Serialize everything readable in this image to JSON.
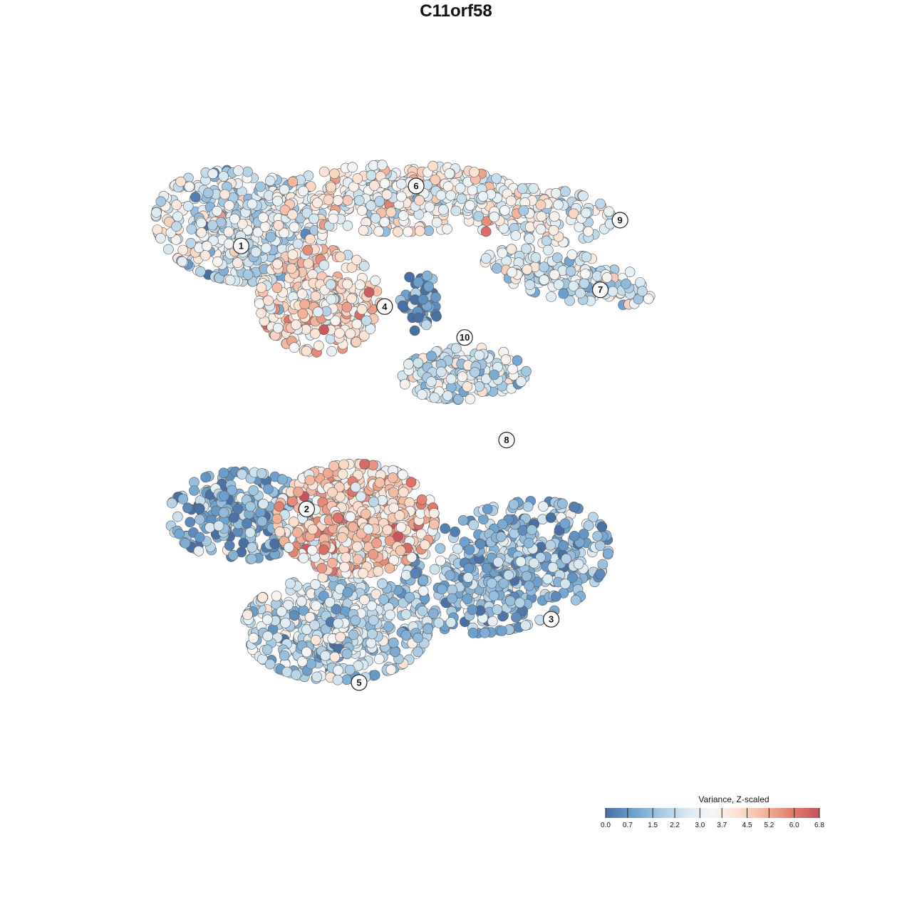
{
  "chart_data": {
    "type": "scatter",
    "title": "C11orf58",
    "xlabel": "",
    "ylabel": "",
    "xlim": [
      0,
      100
    ],
    "ylim": [
      0,
      100
    ],
    "grid": false,
    "axes_visible": false,
    "legend": {
      "title": "Variance, Z-scaled",
      "placement": "bottom-right",
      "range": [
        0.0,
        6.8
      ],
      "ticks": [
        "0.0",
        "0.7",
        "1.5",
        "2.2",
        "3.0",
        "3.7",
        "4.5",
        "5.2",
        "6.0",
        "6.8"
      ],
      "colors": [
        "#4a6fa3",
        "#6b9fcc",
        "#a3c6e0",
        "#d6e7f1",
        "#f7f7f7",
        "#fbe0d0",
        "#f2b199",
        "#e07b6c",
        "#c9505d"
      ]
    },
    "clusters": [
      {
        "label": "1",
        "x": 14.2,
        "y": 85.4,
        "sx": 12.8,
        "sy": 8.5,
        "rot": -0.15,
        "mean": 2.6,
        "n": 520
      },
      {
        "label": "6",
        "x": 38.5,
        "y": 89.7,
        "sx": 18.5,
        "sy": 5.2,
        "rot": 0.0,
        "mean": 3.4,
        "n": 420
      },
      {
        "label": "4",
        "x": 26.5,
        "y": 73.8,
        "sx": 9.2,
        "sy": 8.0,
        "rot": 0.0,
        "mean": 4.1,
        "n": 320
      },
      {
        "label": "10",
        "x": 41.8,
        "y": 73.6,
        "sx": 3.0,
        "sy": 4.6,
        "rot": 0.0,
        "mean": 0.6,
        "n": 60
      },
      {
        "label": "9",
        "x": 60.0,
        "y": 87.0,
        "sx": 11.0,
        "sy": 4.2,
        "rot": -0.05,
        "mean": 3.0,
        "n": 150
      },
      {
        "label": "7",
        "x": 64.5,
        "y": 77.5,
        "sx": 13.0,
        "sy": 3.6,
        "rot": -0.2,
        "mean": 2.6,
        "n": 180
      },
      {
        "label": "8",
        "x": 48.5,
        "y": 62.5,
        "sx": 9.5,
        "sy": 4.0,
        "rot": 0.05,
        "mean": 2.4,
        "n": 200
      },
      {
        "label": "2",
        "x": 14.5,
        "y": 40.5,
        "sx": 11.0,
        "sy": 6.8,
        "rot": 0.0,
        "mean": 1.2,
        "n": 260
      },
      {
        "label": "3",
        "x": 55.0,
        "y": 32.5,
        "sx": 16.0,
        "sy": 9.5,
        "rot": 0.3,
        "mean": 1.5,
        "n": 520
      },
      {
        "label": "5",
        "x": 29.0,
        "y": 23.0,
        "sx": 14.0,
        "sy": 8.0,
        "rot": 0.0,
        "mean": 2.2,
        "n": 520
      },
      {
        "label": "",
        "x": 32.0,
        "y": 40.0,
        "sx": 12.0,
        "sy": 8.5,
        "rot": 0.0,
        "mean": 4.4,
        "n": 640
      }
    ],
    "cluster_labels": [
      {
        "label": "1",
        "x": 14.5,
        "y": 82.3
      },
      {
        "label": "6",
        "x": 41.2,
        "y": 91.6
      },
      {
        "label": "9",
        "x": 72.3,
        "y": 86.3
      },
      {
        "label": "7",
        "x": 69.3,
        "y": 75.5
      },
      {
        "label": "4",
        "x": 36.4,
        "y": 72.9
      },
      {
        "label": "10",
        "x": 48.6,
        "y": 68.1
      },
      {
        "label": "8",
        "x": 55.0,
        "y": 52.2
      },
      {
        "label": "2",
        "x": 24.5,
        "y": 41.5
      },
      {
        "label": "3",
        "x": 61.8,
        "y": 24.4
      },
      {
        "label": "5",
        "x": 32.5,
        "y": 14.6
      }
    ]
  }
}
